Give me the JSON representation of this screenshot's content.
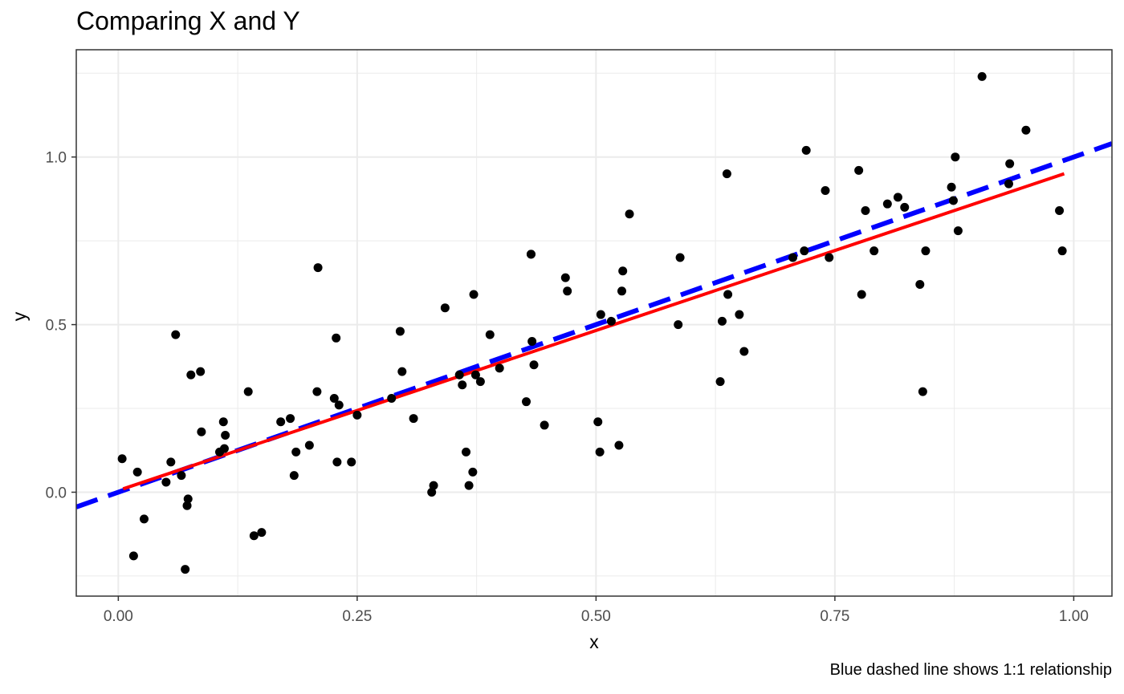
{
  "chart_data": {
    "type": "scatter",
    "title": "Comparing X and Y",
    "xlabel": "x",
    "ylabel": "y",
    "caption": "Blue dashed line shows 1:1 relationship",
    "xlim": [
      -0.044,
      1.04
    ],
    "ylim": [
      -0.31,
      1.32
    ],
    "x_ticks": [
      0.0,
      0.25,
      0.5,
      0.75,
      1.0
    ],
    "x_tick_labels": [
      "0.00",
      "0.25",
      "0.50",
      "0.75",
      "1.00"
    ],
    "y_ticks": [
      0.0,
      0.5,
      1.0
    ],
    "y_tick_labels": [
      "0.0",
      "0.5",
      "1.0"
    ],
    "grid": true,
    "theme": "black-white",
    "colors": {
      "points": "#000000",
      "fit_line": "#ff0000",
      "identity_line": "#0000ff",
      "grid": "#ebebeb",
      "panel_border": "#333333"
    },
    "fit_line": {
      "type": "linear regression",
      "x": [
        0.005,
        0.99
      ],
      "y": [
        0.01,
        0.95
      ]
    },
    "identity_line": {
      "type": "dashed",
      "slope": 1,
      "intercept": 0
    },
    "points": [
      {
        "x": 0.004,
        "y": 0.1
      },
      {
        "x": 0.016,
        "y": -0.19
      },
      {
        "x": 0.02,
        "y": 0.06
      },
      {
        "x": 0.027,
        "y": -0.08
      },
      {
        "x": 0.05,
        "y": 0.03
      },
      {
        "x": 0.055,
        "y": 0.09
      },
      {
        "x": 0.06,
        "y": 0.47
      },
      {
        "x": 0.066,
        "y": 0.05
      },
      {
        "x": 0.07,
        "y": -0.23
      },
      {
        "x": 0.072,
        "y": -0.04
      },
      {
        "x": 0.073,
        "y": -0.02
      },
      {
        "x": 0.076,
        "y": 0.35
      },
      {
        "x": 0.086,
        "y": 0.36
      },
      {
        "x": 0.087,
        "y": 0.18
      },
      {
        "x": 0.106,
        "y": 0.12
      },
      {
        "x": 0.11,
        "y": 0.21
      },
      {
        "x": 0.111,
        "y": 0.13
      },
      {
        "x": 0.112,
        "y": 0.17
      },
      {
        "x": 0.136,
        "y": 0.3
      },
      {
        "x": 0.142,
        "y": -0.13
      },
      {
        "x": 0.15,
        "y": -0.12
      },
      {
        "x": 0.17,
        "y": 0.21
      },
      {
        "x": 0.18,
        "y": 0.22
      },
      {
        "x": 0.184,
        "y": 0.05
      },
      {
        "x": 0.186,
        "y": 0.12
      },
      {
        "x": 0.2,
        "y": 0.14
      },
      {
        "x": 0.208,
        "y": 0.3
      },
      {
        "x": 0.209,
        "y": 0.67
      },
      {
        "x": 0.226,
        "y": 0.28
      },
      {
        "x": 0.228,
        "y": 0.46
      },
      {
        "x": 0.229,
        "y": 0.09
      },
      {
        "x": 0.231,
        "y": 0.26
      },
      {
        "x": 0.244,
        "y": 0.09
      },
      {
        "x": 0.25,
        "y": 0.23
      },
      {
        "x": 0.286,
        "y": 0.28
      },
      {
        "x": 0.295,
        "y": 0.48
      },
      {
        "x": 0.297,
        "y": 0.36
      },
      {
        "x": 0.309,
        "y": 0.22
      },
      {
        "x": 0.328,
        "y": 0.0
      },
      {
        "x": 0.33,
        "y": 0.02
      },
      {
        "x": 0.342,
        "y": 0.55
      },
      {
        "x": 0.357,
        "y": 0.35
      },
      {
        "x": 0.36,
        "y": 0.32
      },
      {
        "x": 0.364,
        "y": 0.12
      },
      {
        "x": 0.367,
        "y": 0.02
      },
      {
        "x": 0.371,
        "y": 0.06
      },
      {
        "x": 0.372,
        "y": 0.59
      },
      {
        "x": 0.374,
        "y": 0.35
      },
      {
        "x": 0.379,
        "y": 0.33
      },
      {
        "x": 0.389,
        "y": 0.47
      },
      {
        "x": 0.399,
        "y": 0.37
      },
      {
        "x": 0.427,
        "y": 0.27
      },
      {
        "x": 0.432,
        "y": 0.71
      },
      {
        "x": 0.432,
        "y": 0.71
      },
      {
        "x": 0.433,
        "y": 0.45
      },
      {
        "x": 0.435,
        "y": 0.38
      },
      {
        "x": 0.446,
        "y": 0.2
      },
      {
        "x": 0.468,
        "y": 0.64
      },
      {
        "x": 0.47,
        "y": 0.6
      },
      {
        "x": 0.502,
        "y": 0.21
      },
      {
        "x": 0.504,
        "y": 0.12
      },
      {
        "x": 0.505,
        "y": 0.53
      },
      {
        "x": 0.516,
        "y": 0.51
      },
      {
        "x": 0.524,
        "y": 0.14
      },
      {
        "x": 0.527,
        "y": 0.6
      },
      {
        "x": 0.528,
        "y": 0.66
      },
      {
        "x": 0.535,
        "y": 0.83
      },
      {
        "x": 0.586,
        "y": 0.5
      },
      {
        "x": 0.588,
        "y": 0.7
      },
      {
        "x": 0.63,
        "y": 0.33
      },
      {
        "x": 0.632,
        "y": 0.51
      },
      {
        "x": 0.637,
        "y": 0.95
      },
      {
        "x": 0.638,
        "y": 0.59
      },
      {
        "x": 0.65,
        "y": 0.53
      },
      {
        "x": 0.655,
        "y": 0.42
      },
      {
        "x": 0.706,
        "y": 0.7
      },
      {
        "x": 0.718,
        "y": 0.72
      },
      {
        "x": 0.72,
        "y": 1.02
      },
      {
        "x": 0.74,
        "y": 0.9
      },
      {
        "x": 0.744,
        "y": 0.7
      },
      {
        "x": 0.775,
        "y": 0.96
      },
      {
        "x": 0.778,
        "y": 0.59
      },
      {
        "x": 0.782,
        "y": 0.84
      },
      {
        "x": 0.791,
        "y": 0.72
      },
      {
        "x": 0.805,
        "y": 0.86
      },
      {
        "x": 0.816,
        "y": 0.88
      },
      {
        "x": 0.823,
        "y": 0.85
      },
      {
        "x": 0.839,
        "y": 0.62
      },
      {
        "x": 0.842,
        "y": 0.3
      },
      {
        "x": 0.845,
        "y": 0.72
      },
      {
        "x": 0.872,
        "y": 0.91
      },
      {
        "x": 0.874,
        "y": 0.87
      },
      {
        "x": 0.876,
        "y": 1.0
      },
      {
        "x": 0.879,
        "y": 0.78
      },
      {
        "x": 0.904,
        "y": 1.24
      },
      {
        "x": 0.932,
        "y": 0.92
      },
      {
        "x": 0.933,
        "y": 0.98
      },
      {
        "x": 0.95,
        "y": 1.08
      },
      {
        "x": 0.985,
        "y": 0.84
      },
      {
        "x": 0.988,
        "y": 0.72
      }
    ]
  }
}
